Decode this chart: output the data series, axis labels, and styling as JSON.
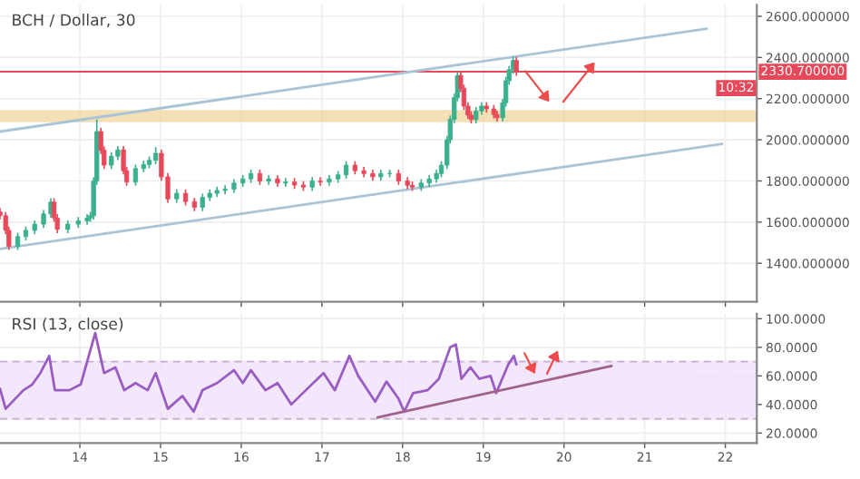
{
  "chart_data": [
    {
      "type": "candlestick",
      "title": "BCH / Dollar, 30",
      "xlim": [
        13.01,
        22.39
      ],
      "ylim": [
        1213,
        2656
      ],
      "tick_labels": "y",
      "grid": true,
      "yticks": [
        {
          "value": 1400,
          "label": "1400.000000"
        },
        {
          "value": 1600,
          "label": "1600.000000"
        },
        {
          "value": 1800,
          "label": "1800.000000"
        },
        {
          "value": 2000,
          "label": "2000.000000"
        },
        {
          "value": 2200,
          "label": "2200.000000"
        },
        {
          "value": 2400,
          "label": "2400.000000"
        },
        {
          "value": 2600,
          "label": "2600.000000"
        }
      ],
      "ref_lines": [
        {
          "axis": "y",
          "value": 2330.7,
          "label": "2330.700000",
          "color": "#e8495a"
        }
      ],
      "bands": [
        {
          "axis": "y",
          "from": 2090,
          "to": 2140,
          "color": "#f3d9a4"
        }
      ],
      "annotations": [
        "10:32"
      ],
      "series": [
        {
          "x": [
            13.01,
            13.08,
            13.12,
            13.23,
            13.33,
            13.44,
            13.55,
            13.64,
            13.68,
            13.72,
            13.85,
            13.98,
            14.09,
            14.13,
            14.17,
            14.21,
            14.26,
            14.3,
            14.39,
            14.47,
            14.54,
            14.58,
            14.69,
            14.79,
            14.86,
            14.94,
            15.01,
            15.09,
            15.2,
            15.31,
            15.42,
            15.52,
            15.61,
            15.7,
            15.8,
            15.91,
            16.02,
            16.12,
            16.23,
            16.34,
            16.45,
            16.55,
            16.66,
            16.77,
            16.88,
            16.98,
            17.09,
            17.2,
            17.3,
            17.41,
            17.52,
            17.63,
            17.73,
            17.84,
            17.95,
            18.06,
            18.12,
            18.23,
            18.33,
            18.42,
            18.48,
            18.55,
            18.59,
            18.64,
            18.68,
            18.72,
            18.76,
            18.81,
            18.85,
            18.91,
            18.98,
            19.04,
            19.13,
            19.17,
            19.24,
            19.28,
            19.32,
            19.37,
            19.41
          ],
          "ohlc": [
            [
              1650,
              1665,
              1616,
              1631
            ],
            [
              1631,
              1646,
              1545,
              1560
            ],
            [
              1560,
              1575,
              1468,
              1483
            ],
            [
              1483,
              1545,
              1468,
              1530
            ],
            [
              1530,
              1575,
              1515,
              1560
            ],
            [
              1560,
              1605,
              1545,
              1590
            ],
            [
              1590,
              1655,
              1575,
              1640
            ],
            [
              1640,
              1712,
              1625,
              1697
            ],
            [
              1697,
              1712,
              1605,
              1620
            ],
            [
              1620,
              1635,
              1550,
              1565
            ],
            [
              1565,
              1605,
              1550,
              1590
            ],
            [
              1590,
              1621,
              1575,
              1606
            ],
            [
              1606,
              1635,
              1591,
              1620
            ],
            [
              1620,
              1646,
              1605,
              1631
            ],
            [
              1631,
              1815,
              1616,
              1800
            ],
            [
              1800,
              2095,
              1785,
              2040
            ],
            [
              2040,
              2055,
              1935,
              1950
            ],
            [
              1950,
              1965,
              1862,
              1877
            ],
            [
              1877,
              1935,
              1862,
              1920
            ],
            [
              1920,
              1966,
              1905,
              1951
            ],
            [
              1951,
              1966,
              1835,
              1850
            ],
            [
              1850,
              1865,
              1780,
              1795
            ],
            [
              1795,
              1875,
              1780,
              1860
            ],
            [
              1860,
              1895,
              1845,
              1880
            ],
            [
              1880,
              1915,
              1865,
              1900
            ],
            [
              1900,
              1960,
              1885,
              1934
            ],
            [
              1934,
              1949,
              1805,
              1820
            ],
            [
              1820,
              1835,
              1698,
              1713
            ],
            [
              1713,
              1755,
              1698,
              1740
            ],
            [
              1740,
              1755,
              1685,
              1700
            ],
            [
              1700,
              1715,
              1657,
              1672
            ],
            [
              1672,
              1735,
              1657,
              1720
            ],
            [
              1720,
              1755,
              1705,
              1740
            ],
            [
              1740,
              1769,
              1725,
              1754
            ],
            [
              1754,
              1775,
              1739,
              1760
            ],
            [
              1760,
              1805,
              1745,
              1790
            ],
            [
              1790,
              1825,
              1775,
              1810
            ],
            [
              1810,
              1851,
              1795,
              1836
            ],
            [
              1836,
              1851,
              1785,
              1800
            ],
            [
              1800,
              1825,
              1785,
              1810
            ],
            [
              1810,
              1825,
              1775,
              1790
            ],
            [
              1790,
              1810,
              1775,
              1795
            ],
            [
              1795,
              1810,
              1765,
              1780
            ],
            [
              1780,
              1795,
              1755,
              1770
            ],
            [
              1770,
              1815,
              1755,
              1800
            ],
            [
              1800,
              1815,
              1780,
              1795
            ],
            [
              1795,
              1825,
              1780,
              1810
            ],
            [
              1810,
              1845,
              1795,
              1830
            ],
            [
              1830,
              1892,
              1815,
              1877
            ],
            [
              1877,
              1892,
              1835,
              1850
            ],
            [
              1850,
              1865,
              1821,
              1836
            ],
            [
              1836,
              1851,
              1805,
              1820
            ],
            [
              1820,
              1851,
              1805,
              1836
            ],
            [
              1836,
              1851,
              1821,
              1836
            ],
            [
              1836,
              1851,
              1785,
              1800
            ],
            [
              1800,
              1815,
              1764,
              1779
            ],
            [
              1779,
              1794,
              1755,
              1770
            ],
            [
              1770,
              1805,
              1755,
              1790
            ],
            [
              1790,
              1825,
              1775,
              1810
            ],
            [
              1810,
              1851,
              1795,
              1836
            ],
            [
              1836,
              1892,
              1821,
              1877
            ],
            [
              1877,
              2015,
              1862,
              2000
            ],
            [
              2000,
              2115,
              1985,
              2100
            ],
            [
              2100,
              2220,
              2085,
              2205
            ],
            [
              2205,
              2327,
              2190,
              2312
            ],
            [
              2312,
              2327,
              2235,
              2250
            ],
            [
              2250,
              2265,
              2149,
              2164
            ],
            [
              2164,
              2179,
              2105,
              2120
            ],
            [
              2120,
              2135,
              2083,
              2098
            ],
            [
              2098,
              2155,
              2083,
              2140
            ],
            [
              2140,
              2179,
              2125,
              2164
            ],
            [
              2164,
              2179,
              2135,
              2150
            ],
            [
              2150,
              2165,
              2108,
              2123
            ],
            [
              2123,
              2138,
              2092,
              2107
            ],
            [
              2107,
              2195,
              2092,
              2180
            ],
            [
              2180,
              2302,
              2165,
              2287
            ],
            [
              2287,
              2355,
              2272,
              2340
            ],
            [
              2340,
              2400,
              2325,
              2385
            ],
            [
              2385,
              2400,
              2315,
              2330
            ]
          ]
        },
        {
          "type": "line",
          "color": "#a9c4d6",
          "x": [
            13.01,
            21.77
          ],
          "values": [
            2040,
            2540
          ]
        },
        {
          "type": "line",
          "color": "#a9c4d6",
          "x": [
            13.01,
            21.96
          ],
          "values": [
            1470,
            1980
          ]
        }
      ]
    },
    {
      "type": "line",
      "title": "RSI (13, close)",
      "xlim": [
        13.01,
        22.39
      ],
      "ylim": [
        13,
        103.5
      ],
      "grid": true,
      "xticks": [
        14,
        15,
        16,
        17,
        18,
        19,
        20,
        21,
        22
      ],
      "yticks": [
        {
          "value": 20,
          "label": "20.0000"
        },
        {
          "value": 40,
          "label": "40.0000"
        },
        {
          "value": 60,
          "label": "60.0000"
        },
        {
          "value": 80,
          "label": "80.0000"
        },
        {
          "value": 100,
          "label": "100.0000"
        }
      ],
      "bands": [
        {
          "axis": "y",
          "from": 30,
          "to": 70,
          "color": "#f1e3fb"
        }
      ],
      "ref_lines": [
        {
          "axis": "y",
          "value": 30,
          "color": "#c4aecf",
          "line_style": "dashed"
        },
        {
          "axis": "y",
          "value": 70,
          "color": "#c4aecf",
          "line_style": "dashed"
        }
      ],
      "series": [
        {
          "color": "#9a5cc0",
          "x": [
            13.01,
            13.08,
            13.3,
            13.41,
            13.51,
            13.62,
            13.69,
            13.87,
            14.01,
            14.19,
            14.3,
            14.44,
            14.55,
            14.69,
            14.84,
            14.94,
            15.09,
            15.27,
            15.41,
            15.52,
            15.7,
            15.91,
            16.02,
            16.12,
            16.3,
            16.45,
            16.62,
            16.8,
            17.02,
            17.16,
            17.34,
            17.45,
            17.66,
            17.8,
            17.95,
            18.02,
            18.13,
            18.31,
            18.45,
            18.59,
            18.66,
            18.73,
            18.84,
            18.95,
            19.09,
            19.16,
            19.31,
            19.38,
            19.41
          ],
          "values": [
            51,
            37,
            50,
            54,
            62,
            74,
            50,
            50,
            54,
            90,
            62,
            66,
            50,
            55,
            50,
            62,
            37,
            46,
            35,
            50,
            55,
            64,
            55,
            64,
            50,
            55,
            40,
            50,
            62,
            50,
            74,
            60,
            42,
            56,
            44,
            35,
            48,
            50,
            58,
            80,
            82,
            58,
            66,
            58,
            60,
            48,
            68,
            74,
            68
          ]
        },
        {
          "type": "line",
          "color": "#a0628a",
          "x": [
            17.69,
            20.59
          ],
          "values": [
            31,
            67
          ]
        }
      ]
    }
  ]
}
